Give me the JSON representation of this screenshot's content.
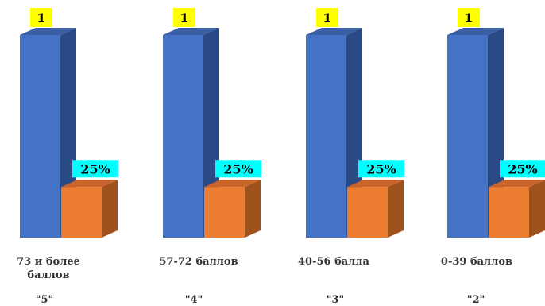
{
  "chart_data": {
    "type": "bar",
    "categories": [
      "73 и более баллов",
      "57-72 баллов",
      "40-56 балла",
      "0-39 баллов"
    ],
    "grades": [
      "\"5\"",
      "\"4\"",
      "\"3\"",
      "\"2\""
    ],
    "series": [
      {
        "values": [
          1,
          1,
          1,
          1
        ],
        "labels": [
          "1",
          "1",
          "1",
          "1"
        ]
      },
      {
        "values": [
          0.25,
          0.25,
          0.25,
          0.25
        ],
        "labels": [
          "25%",
          "25%",
          "25%",
          "25%"
        ]
      }
    ],
    "ylim": [
      0,
      1
    ],
    "grid": false,
    "legend": "none"
  },
  "colors": {
    "series1_front": "#4472C4",
    "series1_side": "#2A4A86",
    "series1_top": "#3A5FA5",
    "series2_front": "#ED7D31",
    "series2_side": "#A0521C",
    "series2_top": "#C9652A",
    "label1_bg": "#FFFF00",
    "label2_bg": "#00FFFF"
  }
}
